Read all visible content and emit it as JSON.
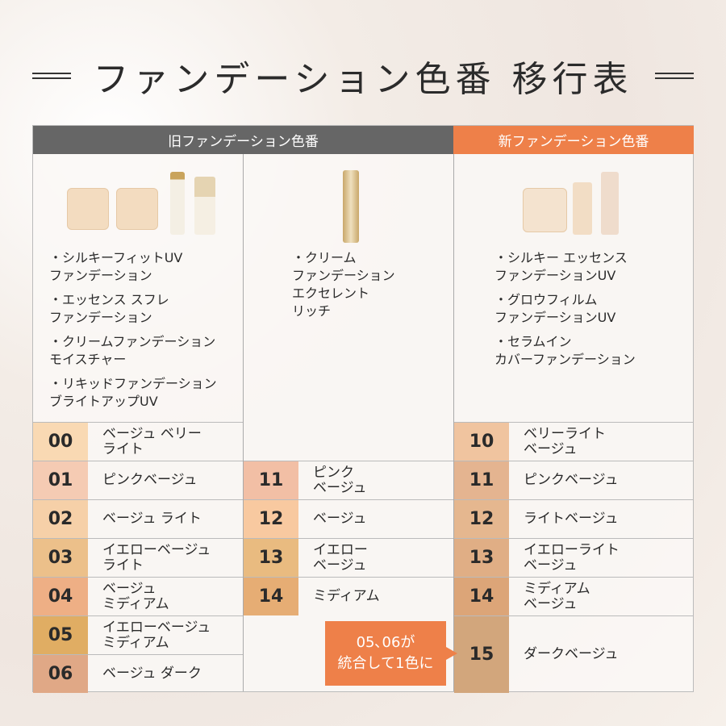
{
  "title": "ファンデーション色番 移行表",
  "headers": {
    "old": "旧ファンデーション色番",
    "new": "新ファンデーション色番"
  },
  "colors": {
    "old_header": "#666666",
    "new_header": "#ee8049",
    "callout": "#ee8049"
  },
  "old_products_a": [
    "・シルキーフィットUV\nファンデーション",
    "・エッセンス スフレ\nファンデーション",
    "・クリームファンデーション\nモイスチャー",
    "・リキッドファンデーション\nブライトアップUV"
  ],
  "old_products_b": [
    "・クリーム\nファンデーション\nエクセレント\nリッチ"
  ],
  "new_products": [
    "・シルキー エッセンス\nファンデーションUV",
    "・グロウフィルム\nファンデーションUV",
    "・セラムイン\nカバーファンデーション"
  ],
  "old_a": [
    {
      "code": "00",
      "name": "ベージュ ベリー\nライト",
      "color": "#f9d9b3"
    },
    {
      "code": "01",
      "name": "ピンクベージュ",
      "color": "#f5cbb3"
    },
    {
      "code": "02",
      "name": "ベージュ ライト",
      "color": "#f6d0a8"
    },
    {
      "code": "03",
      "name": "イエローベージュ\nライト",
      "color": "#ecc08a"
    },
    {
      "code": "04",
      "name": "ベージュ\nミディアム",
      "color": "#eeaf85"
    },
    {
      "code": "05",
      "name": "イエローベージュ\nミディアム",
      "color": "#e0ad63"
    },
    {
      "code": "06",
      "name": "ベージュ ダーク",
      "color": "#e0a886"
    }
  ],
  "old_b": [
    {
      "code": "11",
      "name": "ピンク\nベージュ",
      "color": "#f2bfa5"
    },
    {
      "code": "12",
      "name": "ベージュ",
      "color": "#f8c9a0"
    },
    {
      "code": "13",
      "name": "イエロー\nベージュ",
      "color": "#e9bb80"
    },
    {
      "code": "14",
      "name": "ミディアム",
      "color": "#e6ad74"
    }
  ],
  "new": [
    {
      "code": "10",
      "name": "ベリーライト\nベージュ",
      "color": "#f0c49f"
    },
    {
      "code": "11",
      "name": "ピンクベージュ",
      "color": "#e4b490"
    },
    {
      "code": "12",
      "name": "ライトベージュ",
      "color": "#e5b78f"
    },
    {
      "code": "13",
      "name": "イエローライト\nベージュ",
      "color": "#e0ae85"
    },
    {
      "code": "14",
      "name": "ミディアム\nベージュ",
      "color": "#dca578"
    },
    {
      "code": "15",
      "name": "ダークベージュ",
      "color": "#d2a67c"
    }
  ],
  "callout": {
    "line1": "05､06が",
    "line2": "統合して1色に"
  }
}
